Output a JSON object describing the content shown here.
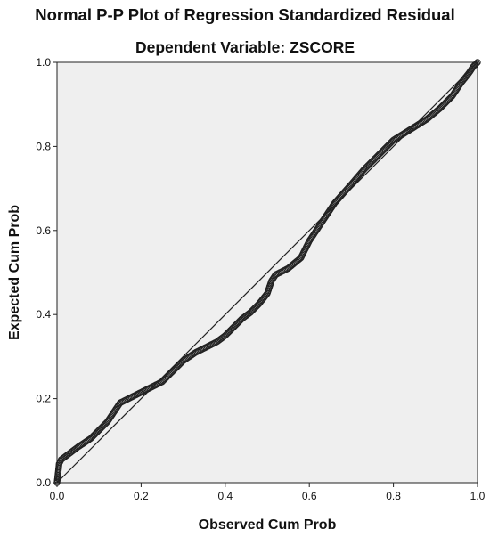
{
  "chart_data": {
    "type": "scatter",
    "title": "Normal P-P Plot of Regression Standardized Residual",
    "subtitle": "Dependent Variable: ZSCORE",
    "xlabel": "Observed Cum Prob",
    "ylabel": "Expected Cum Prob",
    "xlim": [
      0,
      1
    ],
    "ylim": [
      0,
      1
    ],
    "x_ticks": [
      "0.0",
      "0.2",
      "0.4",
      "0.6",
      "0.8",
      "1.0"
    ],
    "y_ticks": [
      "0.0",
      "0.2",
      "0.4",
      "0.6",
      "0.8",
      "1.0"
    ],
    "grid": false,
    "reference_line": [
      [
        0,
        0
      ],
      [
        1,
        1
      ]
    ],
    "series": [
      {
        "marker": "open-circle",
        "curve": [
          [
            0.0,
            0.0
          ],
          [
            0.005,
            0.045
          ],
          [
            0.01,
            0.055
          ],
          [
            0.03,
            0.07
          ],
          [
            0.05,
            0.085
          ],
          [
            0.08,
            0.105
          ],
          [
            0.1,
            0.125
          ],
          [
            0.12,
            0.145
          ],
          [
            0.14,
            0.175
          ],
          [
            0.15,
            0.19
          ],
          [
            0.18,
            0.205
          ],
          [
            0.2,
            0.215
          ],
          [
            0.22,
            0.225
          ],
          [
            0.25,
            0.24
          ],
          [
            0.28,
            0.27
          ],
          [
            0.3,
            0.29
          ],
          [
            0.33,
            0.31
          ],
          [
            0.36,
            0.325
          ],
          [
            0.38,
            0.335
          ],
          [
            0.4,
            0.35
          ],
          [
            0.42,
            0.37
          ],
          [
            0.44,
            0.39
          ],
          [
            0.46,
            0.405
          ],
          [
            0.48,
            0.425
          ],
          [
            0.5,
            0.45
          ],
          [
            0.51,
            0.48
          ],
          [
            0.52,
            0.495
          ],
          [
            0.55,
            0.51
          ],
          [
            0.58,
            0.535
          ],
          [
            0.6,
            0.575
          ],
          [
            0.63,
            0.62
          ],
          [
            0.66,
            0.665
          ],
          [
            0.7,
            0.71
          ],
          [
            0.73,
            0.745
          ],
          [
            0.75,
            0.765
          ],
          [
            0.78,
            0.795
          ],
          [
            0.8,
            0.815
          ],
          [
            0.84,
            0.84
          ],
          [
            0.88,
            0.865
          ],
          [
            0.91,
            0.89
          ],
          [
            0.94,
            0.92
          ],
          [
            0.96,
            0.95
          ],
          [
            0.98,
            0.975
          ],
          [
            0.99,
            0.99
          ],
          [
            1.0,
            1.0
          ]
        ]
      }
    ]
  },
  "colors": {
    "plot_background": "#efefef",
    "marker_stroke": "#222222",
    "reference_line": "#222222",
    "axis": "#222222"
  }
}
